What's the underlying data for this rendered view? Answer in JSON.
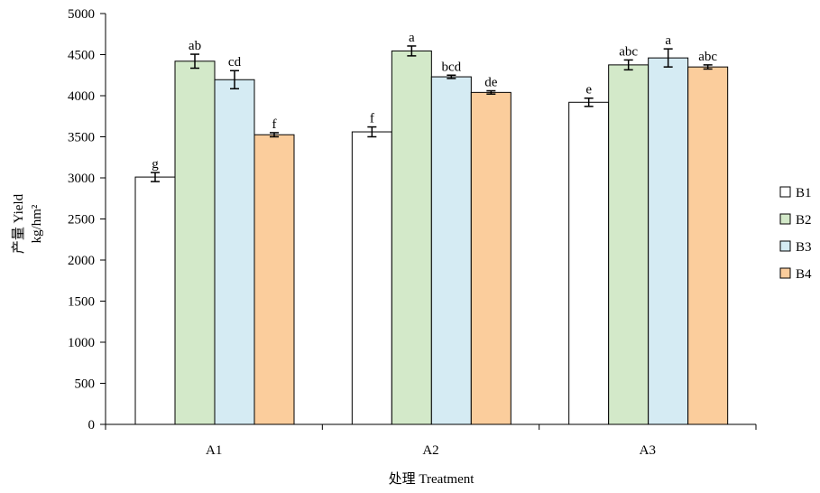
{
  "chart_data": {
    "type": "bar",
    "xlabel": "处理 Treatment",
    "ylabel_line1": "产量 Yield",
    "ylabel_line2": "kg/hm²",
    "ylim": [
      0,
      5000
    ],
    "yticks": [
      0,
      500,
      1000,
      1500,
      2000,
      2500,
      3000,
      3500,
      4000,
      4500,
      5000
    ],
    "grid": false,
    "legend_position": "right",
    "categories": [
      "A1",
      "A2",
      "A3"
    ],
    "series": [
      {
        "name": "B1",
        "color": "#ffffff",
        "values": [
          3010,
          3560,
          3920
        ],
        "errors": [
          55,
          60,
          50
        ],
        "letters": [
          "g",
          "f",
          "e"
        ]
      },
      {
        "name": "B2",
        "color": "#d3e9c9",
        "values": [
          4420,
          4545,
          4375
        ],
        "errors": [
          85,
          60,
          60
        ],
        "letters": [
          "ab",
          "a",
          "abc"
        ]
      },
      {
        "name": "B3",
        "color": "#d5ebf3",
        "values": [
          4195,
          4230,
          4460
        ],
        "errors": [
          110,
          20,
          110
        ],
        "letters": [
          "cd",
          "bcd",
          "a"
        ]
      },
      {
        "name": "B4",
        "color": "#fbcd9c",
        "values": [
          3525,
          4040,
          4350
        ],
        "errors": [
          25,
          20,
          25
        ],
        "letters": [
          "f",
          "de",
          "abc"
        ]
      }
    ]
  }
}
